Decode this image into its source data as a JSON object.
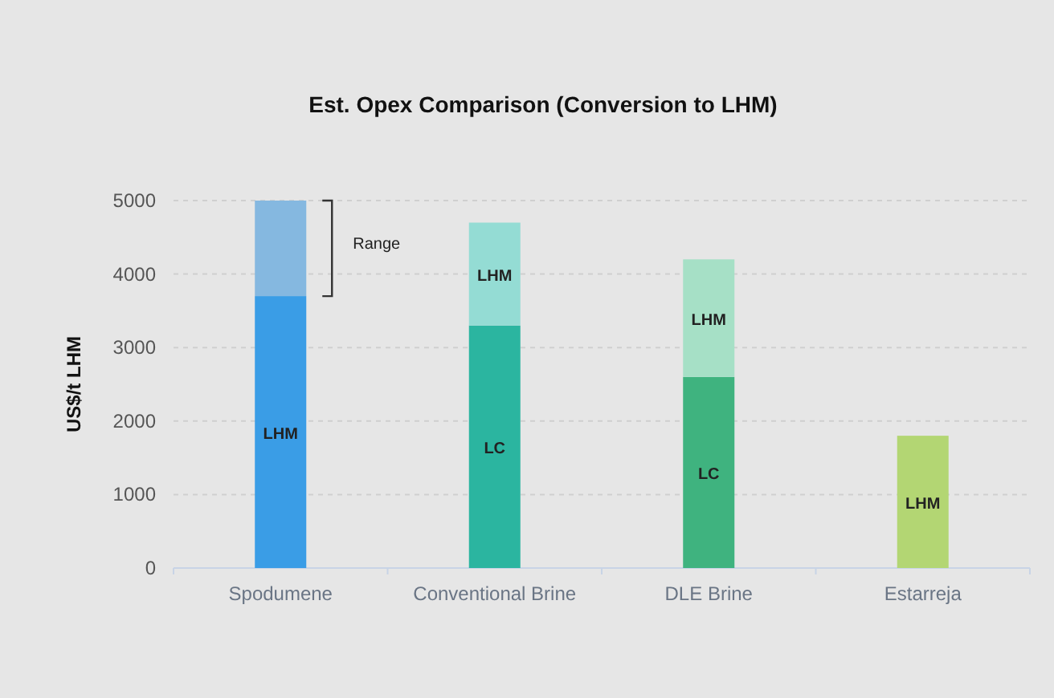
{
  "chart_data": {
    "type": "bar",
    "title": "Est. Opex Comparison (Conversion to LHM)",
    "ylabel": "US$/t LHM",
    "categories": [
      "Spodumene",
      "Conventional Brine",
      "DLE Brine",
      "Estarreja"
    ],
    "stacked": true,
    "series": [
      {
        "colors": [
          "#3a9de6",
          "#2bb5a0",
          "#3fb37f",
          "#b3d673"
        ],
        "values": [
          3700,
          3300,
          2600,
          1800
        ],
        "value_labels": [
          "LHM",
          "LC",
          "LC",
          "LHM"
        ]
      },
      {
        "colors": [
          "#85b8e0",
          "#94dcd4",
          "#a6e0c6",
          null
        ],
        "values": [
          1300,
          1400,
          1600,
          null
        ],
        "value_labels": [
          null,
          "LHM",
          "LHM",
          null
        ]
      }
    ],
    "ylim": [
      0,
      5000
    ],
    "yticks": [
      0,
      1000,
      2000,
      3000,
      4000,
      5000
    ],
    "grid": "y",
    "annotations": [
      "Range"
    ]
  }
}
